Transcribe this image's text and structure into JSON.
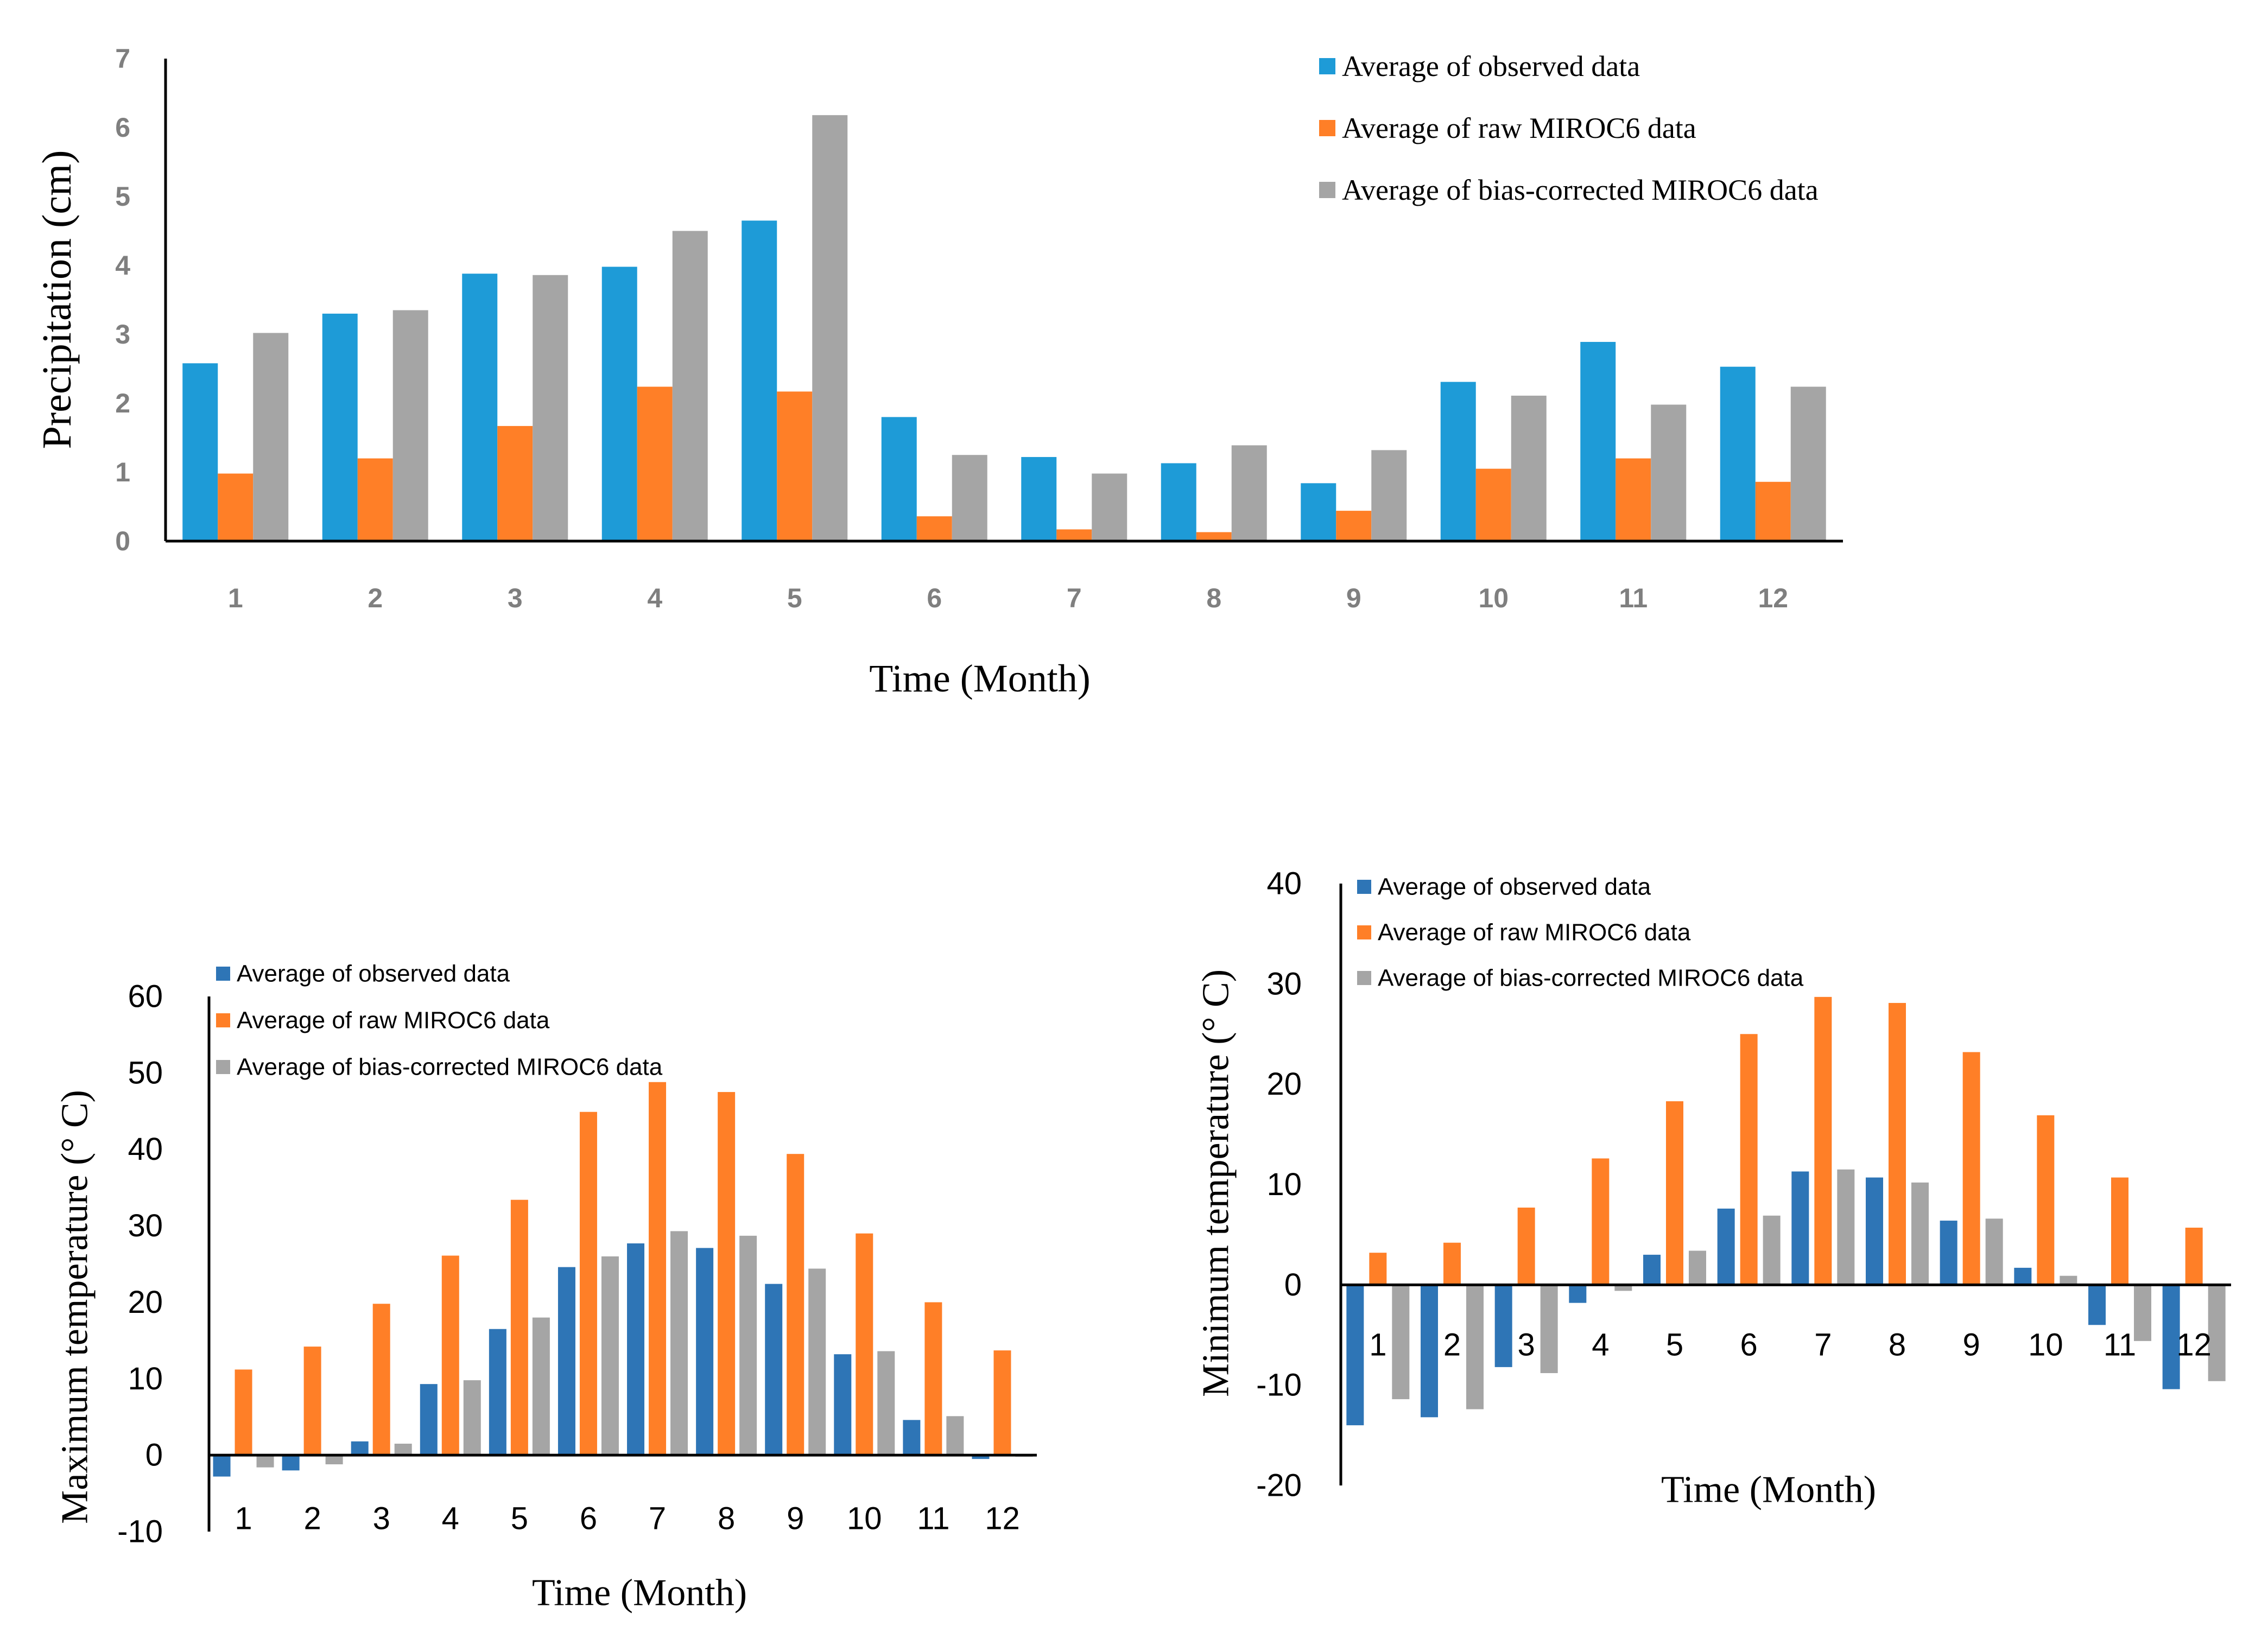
{
  "colors": {
    "observed": "#1E9BD7",
    "raw": "#FF7F27",
    "corrected": "#A5A5A5",
    "observed_dark": "#2E75B6",
    "axis": "#000000",
    "tick_text": "#7F7F7F",
    "label_text": "#000000"
  },
  "chart_data": [
    {
      "type": "bar",
      "title": "",
      "xlabel": "Time (Month)",
      "ylabel": "Precipitation (cm)",
      "ylim": [
        0,
        7
      ],
      "yticks": [
        "0",
        "1",
        "2",
        "3",
        "4",
        "5",
        "6",
        "7"
      ],
      "categories": [
        "1",
        "2",
        "3",
        "4",
        "5",
        "6",
        "7",
        "8",
        "9",
        "10",
        "11",
        "12"
      ],
      "legend": "top-right",
      "series": [
        {
          "name": "Average of observed data",
          "values": [
            2.58,
            3.3,
            3.88,
            3.98,
            4.65,
            1.8,
            1.22,
            1.13,
            0.84,
            2.31,
            2.89,
            2.53
          ]
        },
        {
          "name": "Average of raw MIROC6 data",
          "values": [
            0.98,
            1.2,
            1.67,
            2.24,
            2.17,
            0.36,
            0.17,
            0.13,
            0.44,
            1.05,
            1.2,
            0.86
          ]
        },
        {
          "name": "Average of bias-corrected MIROC6 data",
          "values": [
            3.02,
            3.35,
            3.86,
            4.5,
            6.18,
            1.25,
            0.98,
            1.39,
            1.32,
            2.11,
            1.98,
            2.24
          ]
        }
      ]
    },
    {
      "type": "bar",
      "title": "",
      "xlabel": "Time (Month)",
      "ylabel": "Maximum temperature (° C)",
      "ylim": [
        -10,
        60
      ],
      "yticks": [
        "-10",
        "0",
        "10",
        "20",
        "30",
        "40",
        "50",
        "60"
      ],
      "categories": [
        "1",
        "2",
        "3",
        "4",
        "5",
        "6",
        "7",
        "8",
        "9",
        "10",
        "11",
        "12"
      ],
      "legend": "top-left",
      "series": [
        {
          "name": "Average of observed data",
          "values": [
            -2.8,
            -2.0,
            1.8,
            9.3,
            16.5,
            24.6,
            27.7,
            27.1,
            22.4,
            13.2,
            4.6,
            -0.5
          ]
        },
        {
          "name": "Average of raw MIROC6 data",
          "values": [
            11.2,
            14.2,
            19.8,
            26.1,
            33.4,
            44.9,
            48.8,
            47.5,
            39.4,
            29.0,
            20.0,
            13.7
          ]
        },
        {
          "name": "Average of bias-corrected MIROC6 data",
          "values": [
            -1.6,
            -1.2,
            1.5,
            9.8,
            18.0,
            26.0,
            29.3,
            28.7,
            24.4,
            13.6,
            5.1,
            -0.2
          ]
        }
      ]
    },
    {
      "type": "bar",
      "title": "",
      "xlabel": "Time (Month)",
      "ylabel": "Minimum temperature (° C)",
      "ylim": [
        -20,
        40
      ],
      "yticks": [
        "-20",
        "-10",
        "0",
        "10",
        "20",
        "30",
        "40"
      ],
      "categories": [
        "1",
        "2",
        "3",
        "4",
        "5",
        "6",
        "7",
        "8",
        "9",
        "10",
        "11",
        "12"
      ],
      "legend": "top-left",
      "series": [
        {
          "name": "Average of observed data",
          "values": [
            -14.0,
            -13.2,
            -8.2,
            -1.8,
            3.0,
            7.6,
            11.3,
            10.7,
            6.4,
            1.7,
            -4.0,
            -10.4
          ]
        },
        {
          "name": "Average of raw MIROC6 data",
          "values": [
            3.2,
            4.2,
            7.7,
            12.6,
            18.3,
            25.0,
            28.7,
            28.1,
            23.2,
            16.9,
            10.7,
            5.7
          ]
        },
        {
          "name": "Average of bias-corrected MIROC6 data",
          "values": [
            -11.4,
            -12.4,
            -8.8,
            -0.6,
            3.4,
            6.9,
            11.5,
            10.2,
            6.6,
            0.9,
            -5.6,
            -9.6
          ]
        }
      ]
    }
  ]
}
